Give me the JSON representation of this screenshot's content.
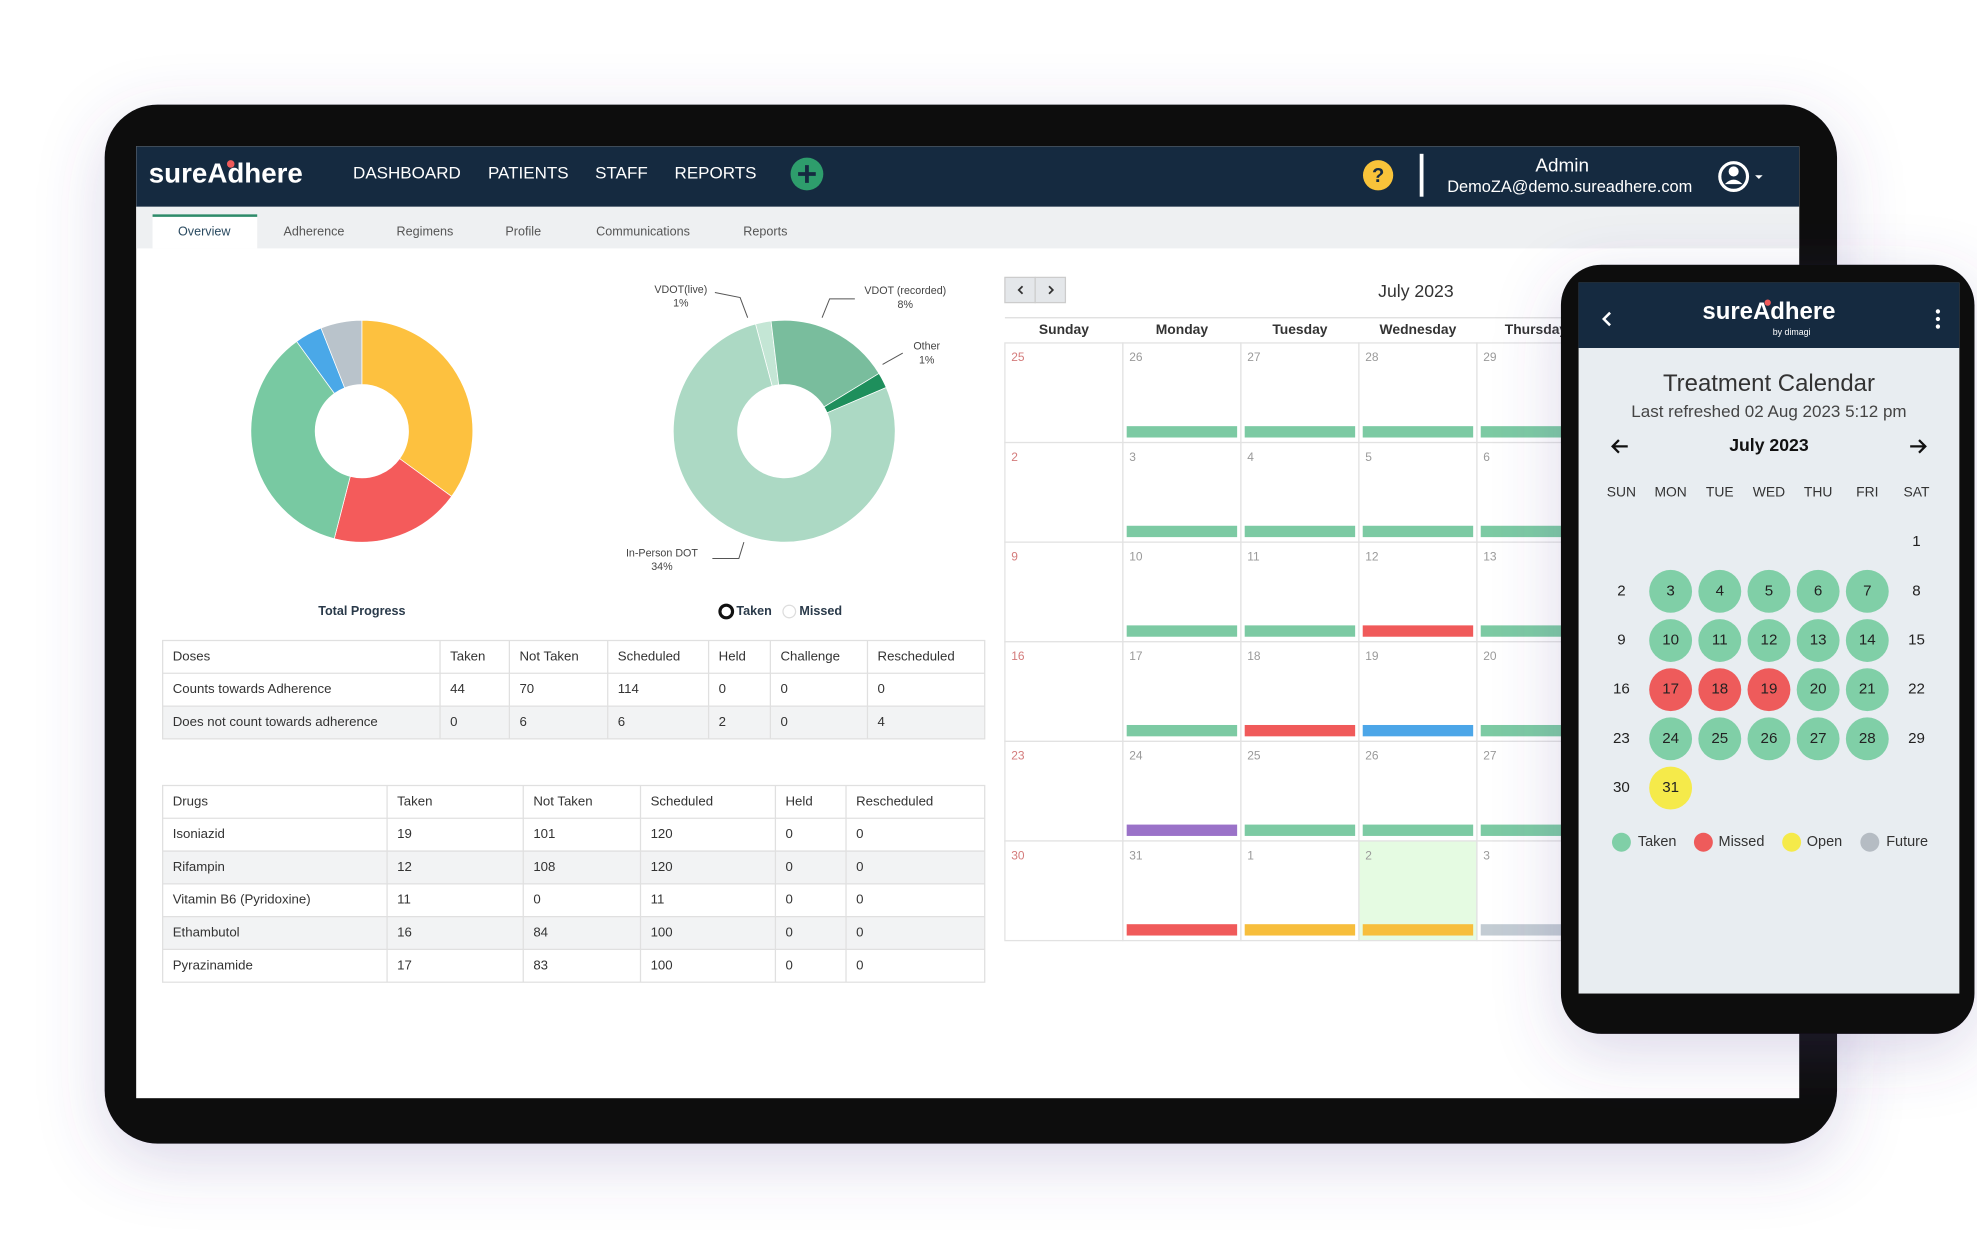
{
  "nav": {
    "logo": "sureAdhere",
    "items": [
      "DASHBOARD",
      "PATIENTS",
      "STAFF",
      "REPORTS"
    ],
    "help": "?",
    "user": "Admin",
    "email": "DemoZA@demo.sureadhere.com"
  },
  "tabs": [
    "Overview",
    "Adherence",
    "Regimens",
    "Profile",
    "Communications",
    "Reports"
  ],
  "chart_data": [
    {
      "type": "pie",
      "title": "Total Progress",
      "values": [
        35,
        19,
        36,
        4,
        6
      ],
      "colors": [
        "#fdc13f",
        "#f45b5b",
        "#78c9a2",
        "#4aa8e8",
        "#b9c3cb"
      ]
    },
    {
      "type": "pie",
      "categories": [
        "VDOT(live)",
        "VDOT (recorded)",
        "Other",
        "In-Person DOT"
      ],
      "values": [
        1,
        8,
        1,
        34
      ],
      "value_labels": [
        "1%",
        "8%",
        "1%",
        "34%"
      ],
      "colors": [
        "#c4e6d5",
        "#79bd9d",
        "#1e8f5c",
        "#acd9c4"
      ],
      "toggle": [
        "Taken",
        "Missed"
      ]
    }
  ],
  "doses_table": {
    "header": [
      "Doses",
      "Taken",
      "Not Taken",
      "Scheduled",
      "Held",
      "Challenge",
      "Rescheduled"
    ],
    "rows": [
      [
        "Counts towards Adherence",
        44,
        70,
        114,
        0,
        0,
        0
      ],
      [
        "Does not count towards adherence",
        0,
        6,
        6,
        2,
        0,
        4
      ]
    ]
  },
  "drugs_table": {
    "header": [
      "Drugs",
      "Taken",
      "Not Taken",
      "Scheduled",
      "Held",
      "Rescheduled"
    ],
    "rows": [
      [
        "Isoniazid",
        19,
        101,
        120,
        0,
        0
      ],
      [
        "Rifampin",
        12,
        108,
        120,
        0,
        0
      ],
      [
        "Vitamin B6 (Pyridoxine)",
        11,
        0,
        11,
        0,
        0
      ],
      [
        "Ethambutol",
        16,
        84,
        100,
        0,
        0
      ],
      [
        "Pyrazinamide",
        17,
        83,
        100,
        0,
        0
      ]
    ]
  },
  "calendar": {
    "month": "July 2023",
    "weekdays": [
      "Sunday",
      "Monday",
      "Tuesday",
      "Wednesday",
      "Thursday"
    ],
    "weeks": [
      [
        {
          "day": 25
        },
        {
          "day": 26,
          "bar": "#7ccaa3"
        },
        {
          "day": 27,
          "bar": "#7ccaa3"
        },
        {
          "day": 28,
          "bar": "#7ccaa3"
        },
        {
          "day": 29,
          "bar": "#7ccaa3"
        }
      ],
      [
        {
          "day": 2
        },
        {
          "day": 3,
          "bar": "#7ccaa3"
        },
        {
          "day": 4,
          "bar": "#7ccaa3"
        },
        {
          "day": 5,
          "bar": "#7ccaa3"
        },
        {
          "day": 6,
          "bar": "#7ccaa3"
        }
      ],
      [
        {
          "day": 9
        },
        {
          "day": 10,
          "bar": "#7ccaa3"
        },
        {
          "day": 11,
          "bar": "#7ccaa3"
        },
        {
          "day": 12,
          "bar": "#f05a5a"
        },
        {
          "day": 13,
          "bar": "#7ccaa3"
        }
      ],
      [
        {
          "day": 16
        },
        {
          "day": 17,
          "bar": "#7ccaa3"
        },
        {
          "day": 18,
          "bar": "#f05a5a"
        },
        {
          "day": 19,
          "bar": "#4ca6e8"
        },
        {
          "day": 20,
          "bar": "#7ccaa3"
        }
      ],
      [
        {
          "day": 23
        },
        {
          "day": 24,
          "bar": "#9a72c8"
        },
        {
          "day": 25,
          "bar": "#7ccaa3"
        },
        {
          "day": 26,
          "bar": "#7ccaa3"
        },
        {
          "day": 27,
          "bar": "#7ccaa3"
        }
      ],
      [
        {
          "day": 30
        },
        {
          "day": 31,
          "bar": "#f05a5a"
        },
        {
          "day": 1,
          "bar": "#f7be3c"
        },
        {
          "day": 2,
          "bar": "#f7be3c",
          "bg": "#e5fbe2"
        },
        {
          "day": 3,
          "bar": "#c3ccd3"
        }
      ]
    ]
  },
  "phone": {
    "brand": "sureAdhere",
    "byline": "by dimagi",
    "title": "Treatment Calendar",
    "refreshed": "Last refreshed 02 Aug 2023 5:12 pm",
    "month": "July 2023",
    "weekdays": [
      "SUN",
      "MON",
      "TUE",
      "WED",
      "THU",
      "FRI",
      "SAT"
    ],
    "weeks": [
      [
        null,
        null,
        null,
        null,
        null,
        null,
        {
          "day": 1
        }
      ],
      [
        {
          "day": 2
        },
        {
          "day": 3,
          "color": "#80cfa7"
        },
        {
          "day": 4,
          "color": "#80cfa7"
        },
        {
          "day": 5,
          "color": "#80cfa7"
        },
        {
          "day": 6,
          "color": "#80cfa7"
        },
        {
          "day": 7,
          "color": "#80cfa7"
        },
        {
          "day": 8
        }
      ],
      [
        {
          "day": 9
        },
        {
          "day": 10,
          "color": "#80cfa7"
        },
        {
          "day": 11,
          "color": "#80cfa7"
        },
        {
          "day": 12,
          "color": "#80cfa7"
        },
        {
          "day": 13,
          "color": "#80cfa7"
        },
        {
          "day": 14,
          "color": "#80cfa7"
        },
        {
          "day": 15
        }
      ],
      [
        {
          "day": 16
        },
        {
          "day": 17,
          "color": "#ee5b5b"
        },
        {
          "day": 18,
          "color": "#ee5b5b"
        },
        {
          "day": 19,
          "color": "#ee5b5b"
        },
        {
          "day": 20,
          "color": "#80cfa7"
        },
        {
          "day": 21,
          "color": "#80cfa7"
        },
        {
          "day": 22
        }
      ],
      [
        {
          "day": 23
        },
        {
          "day": 24,
          "color": "#80cfa7"
        },
        {
          "day": 25,
          "color": "#80cfa7"
        },
        {
          "day": 26,
          "color": "#80cfa7"
        },
        {
          "day": 27,
          "color": "#80cfa7"
        },
        {
          "day": 28,
          "color": "#80cfa7"
        },
        {
          "day": 29
        }
      ],
      [
        {
          "day": 30
        },
        {
          "day": 31,
          "color": "#f5ea4a"
        }
      ]
    ],
    "legend": [
      {
        "label": "Taken",
        "color": "#80cfa7"
      },
      {
        "label": "Missed",
        "color": "#ee5b5b"
      },
      {
        "label": "Open",
        "color": "#f5ea4a"
      },
      {
        "label": "Future",
        "color": "#b5bcc3"
      }
    ]
  }
}
